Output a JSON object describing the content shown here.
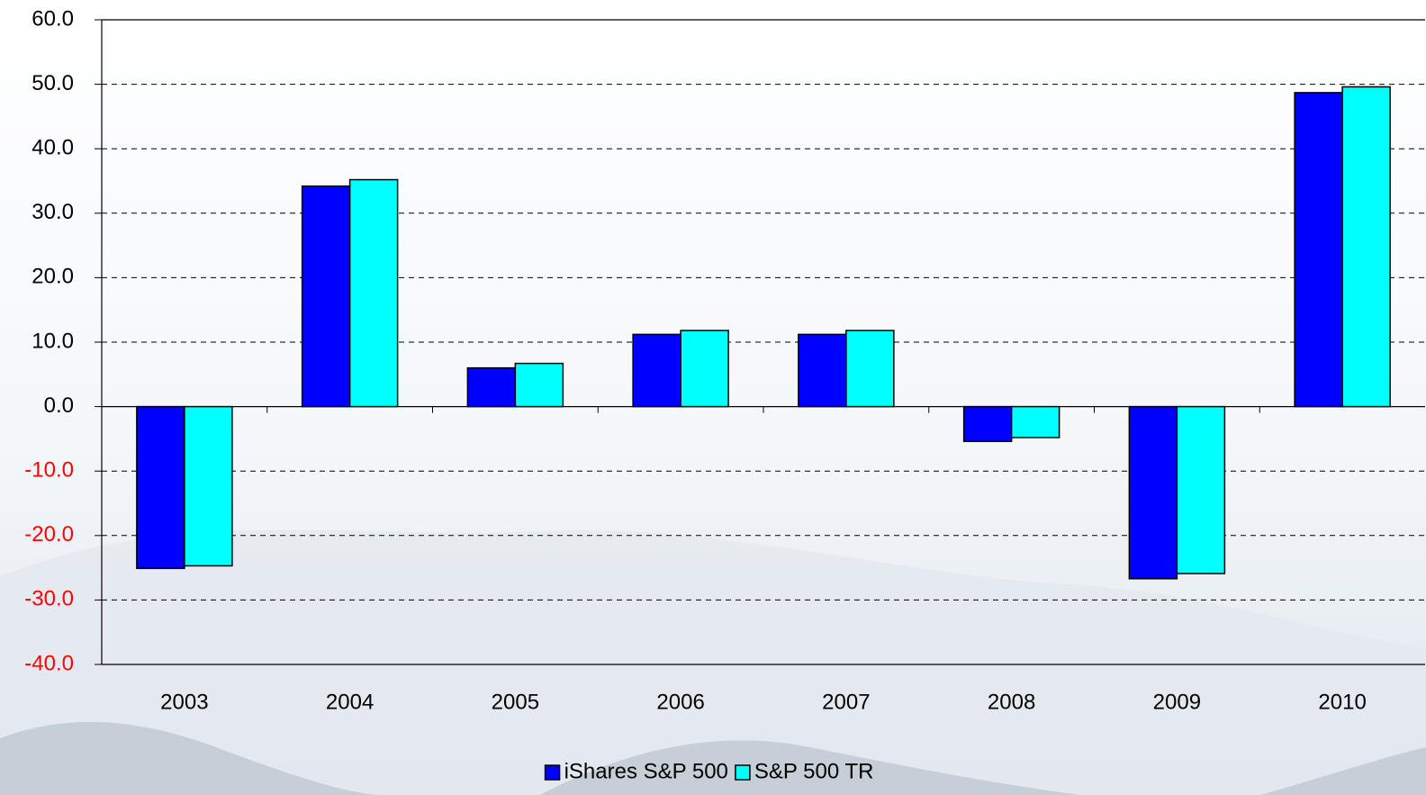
{
  "chart_data": {
    "type": "bar",
    "categories": [
      "2003",
      "2004",
      "2005",
      "2006",
      "2007",
      "2008",
      "2009",
      "2010"
    ],
    "series": [
      {
        "name": "iShares S&P 500",
        "color": "#0000ff",
        "values": [
          -25.1,
          34.2,
          6.0,
          11.2,
          11.2,
          -5.4,
          -26.7,
          48.7
        ]
      },
      {
        "name": "S&P 500 TR",
        "color": "#00ffff",
        "values": [
          -24.7,
          35.2,
          6.7,
          11.8,
          11.8,
          -4.8,
          -25.9,
          49.6
        ]
      }
    ],
    "ylim": [
      -40,
      60
    ],
    "yticks": [
      {
        "value": -40,
        "label": "-40.0"
      },
      {
        "value": -30,
        "label": "-30.0"
      },
      {
        "value": -20,
        "label": "-20.0"
      },
      {
        "value": -10,
        "label": "-10.0"
      },
      {
        "value": 0,
        "label": "0.0"
      },
      {
        "value": 10,
        "label": "10.0"
      },
      {
        "value": 20,
        "label": "20.0"
      },
      {
        "value": 30,
        "label": "30.0"
      },
      {
        "value": 40,
        "label": "40.0"
      },
      {
        "value": 50,
        "label": "50.0"
      },
      {
        "value": 60,
        "label": "60.0"
      }
    ],
    "grid": true,
    "negative_tick_color": "#ff0000",
    "legend": "bottom"
  }
}
